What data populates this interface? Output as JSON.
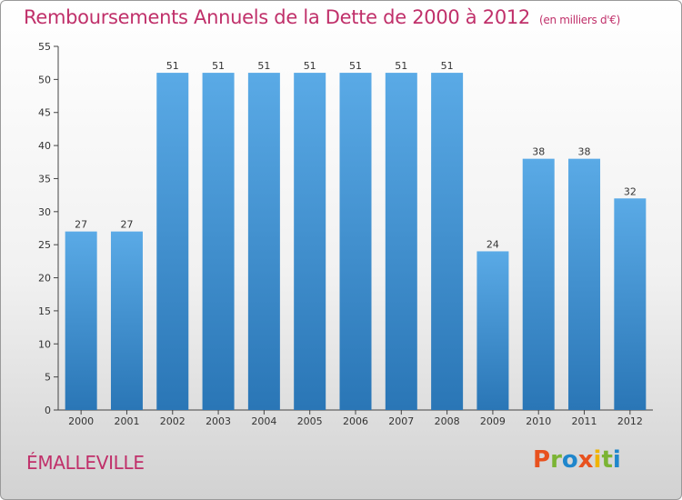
{
  "title": "Remboursements Annuels de la Dette de 2000 à 2012",
  "unit_note": "(en milliers d'€)",
  "commune": "ÉMALLEVILLE",
  "logo": {
    "letters": [
      "P",
      "r",
      "o",
      "x",
      "i",
      "t",
      "i"
    ],
    "colors": [
      "#e8511e",
      "#7bb434",
      "#1f86cc",
      "#e8511e",
      "#f0b400",
      "#7bb434",
      "#1f86cc"
    ]
  },
  "colors": {
    "bar": "#3d92d2",
    "bar_top": "#5aaae6",
    "bar_bottom": "#2a76b6",
    "title": "#c0306a"
  },
  "chart_data": {
    "type": "bar",
    "categories": [
      "2000",
      "2001",
      "2002",
      "2003",
      "2004",
      "2005",
      "2006",
      "2007",
      "2008",
      "2009",
      "2010",
      "2011",
      "2012"
    ],
    "values": [
      27,
      27,
      51,
      51,
      51,
      51,
      51,
      51,
      51,
      24,
      38,
      38,
      32
    ],
    "data_labels": [
      "27",
      "27",
      "51",
      "51",
      "51",
      "51",
      "51",
      "51",
      "51",
      "24",
      "38",
      "38",
      "32"
    ],
    "y_ticks": [
      "0",
      "5",
      "10",
      "15",
      "20",
      "25",
      "30",
      "35",
      "40",
      "45",
      "50",
      "55"
    ],
    "ylim": [
      0,
      55
    ],
    "grid": false,
    "legend": "none"
  }
}
